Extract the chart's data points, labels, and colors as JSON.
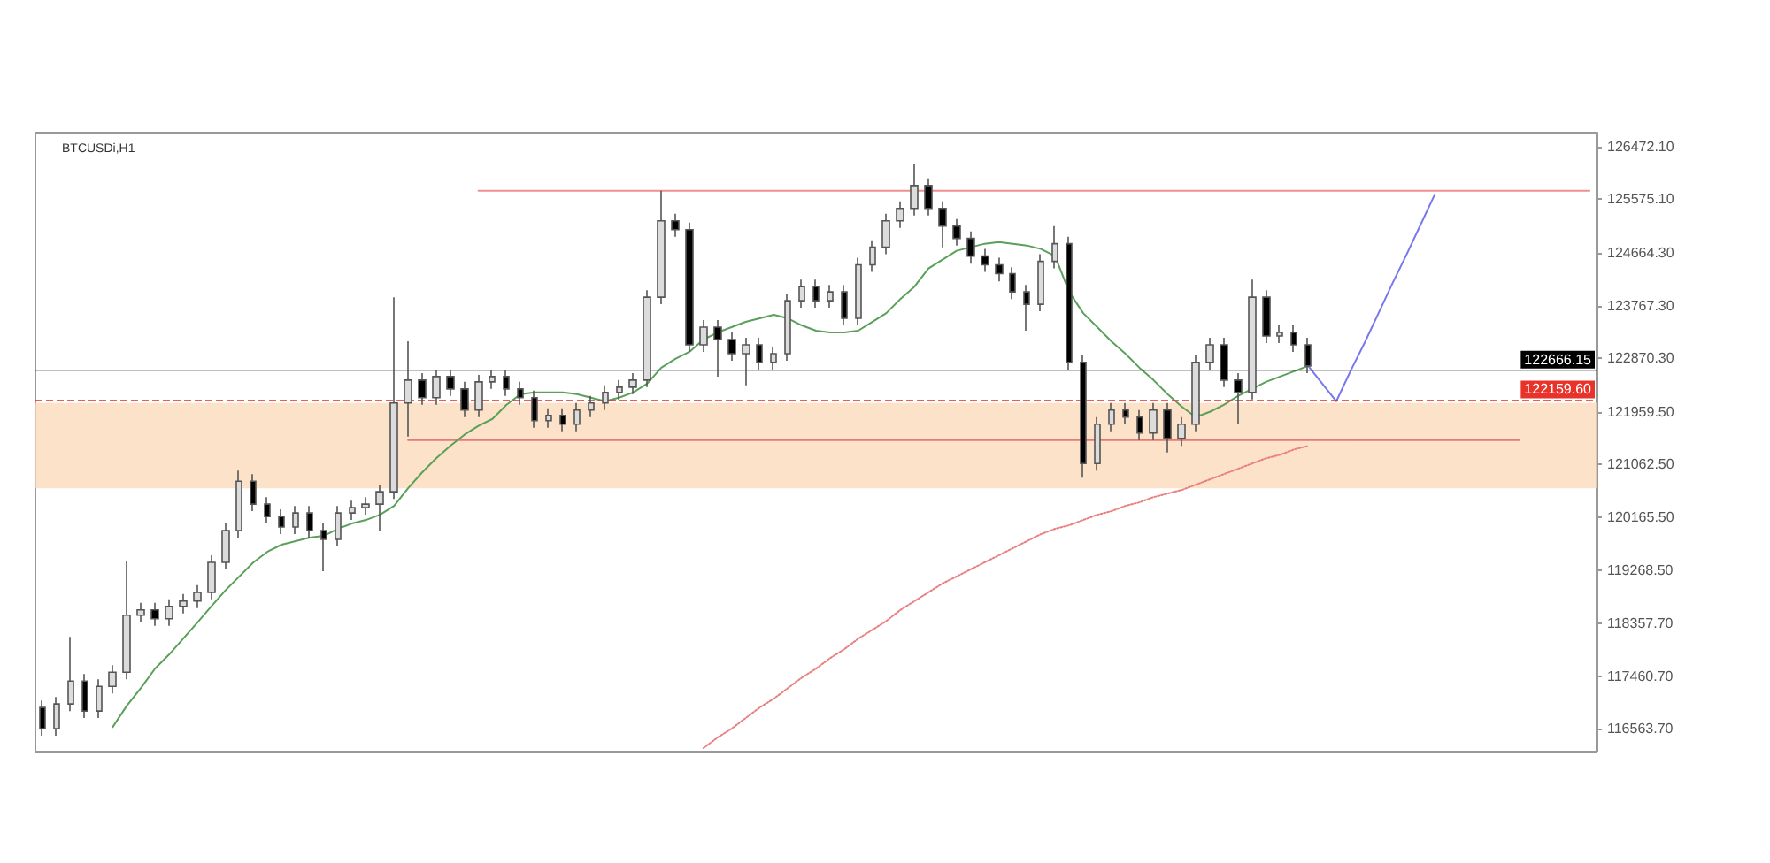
{
  "chart_data": {
    "type": "candlestick",
    "title": "BTCUSDi,H1",
    "categories": [
      null,
      null,
      null,
      null,
      null,
      null,
      null,
      null,
      null,
      null,
      null,
      null,
      null,
      null,
      null,
      null,
      null,
      null,
      null,
      null,
      null,
      null,
      null,
      null,
      null,
      null,
      null,
      null,
      null,
      null,
      null,
      null,
      null,
      null,
      null,
      null,
      null,
      null,
      null,
      null,
      null,
      null,
      null,
      null,
      null,
      null,
      null,
      null,
      null,
      null,
      null,
      null,
      null,
      null,
      null,
      null,
      null,
      null,
      null,
      null,
      null,
      null,
      null,
      null,
      null,
      null,
      null,
      null,
      null,
      null,
      null,
      null,
      null,
      null,
      null,
      null,
      null,
      null,
      null,
      null,
      null,
      null,
      null,
      null,
      null,
      null,
      null,
      null,
      null,
      null,
      null,
      null,
      null,
      null,
      null,
      null,
      null,
      null,
      null,
      null,
      null,
      null,
      null,
      null,
      null,
      null,
      null,
      null,
      null,
      null,
      null
    ],
    "ylim": [
      116180,
      126710
    ],
    "yticks": [
      {
        "value": 116563.7,
        "label": "116563.70"
      },
      {
        "value": 117460.7,
        "label": "117460.70"
      },
      {
        "value": 118357.7,
        "label": "118357.70"
      },
      {
        "value": 119268.5,
        "label": "119268.50"
      },
      {
        "value": 120165.5,
        "label": "120165.50"
      },
      {
        "value": 121062.5,
        "label": "121062.50"
      },
      {
        "value": 121959.5,
        "label": "121959.50"
      },
      {
        "value": 122870.3,
        "label": "122870.30"
      },
      {
        "value": 123767.3,
        "label": "123767.30"
      },
      {
        "value": 124664.3,
        "label": "124664.30"
      },
      {
        "value": 125575.1,
        "label": "125575.10"
      },
      {
        "value": 126472.1,
        "label": "126472.10"
      }
    ],
    "tick_labels": "y",
    "grid": false,
    "ref_lines": [
      {
        "axis": "y",
        "value": 122666.15,
        "label": "122666.15",
        "color": "#000000",
        "line_style": "solid"
      },
      {
        "axis": "y",
        "value": 122159.6,
        "label": "122159.60",
        "color": "#e8332a",
        "line_style": "dashed"
      }
    ],
    "bands": [
      {
        "axis": "y",
        "from": 120660,
        "to": 122110,
        "color": "#fbd6b0"
      }
    ],
    "series": [
      {
        "type": "line",
        "color": "#ef8f8f",
        "line_style": "solid",
        "marker": "none",
        "values": [
          null,
          null,
          null,
          null,
          null,
          null,
          null,
          null,
          null,
          null,
          null,
          null,
          null,
          null,
          null,
          null,
          null,
          null,
          null,
          null,
          null,
          null,
          null,
          null,
          null,
          null,
          null,
          null,
          null,
          null,
          null,
          125720,
          125720,
          125720,
          125720,
          125720,
          125720,
          125720,
          125720,
          125720,
          125720,
          125720,
          125720,
          125720,
          125720,
          125720,
          125720,
          125720,
          125720,
          125720,
          125720,
          125720,
          125720,
          125720,
          125720,
          125720,
          125720,
          125720,
          125720,
          125720,
          125720,
          125720,
          125720,
          125720,
          125720,
          125720,
          125720,
          125720,
          125720,
          125720,
          125720,
          125720,
          125720,
          125720,
          125720,
          125720,
          125720,
          125720,
          125720,
          125720,
          125720,
          125720,
          125720,
          125720,
          125720,
          125720,
          125720,
          125720,
          125720,
          125720,
          125720,
          125720,
          125720,
          125720,
          125720,
          125720,
          125720,
          125720,
          125720,
          125720,
          125720,
          125720,
          125720,
          125720,
          125720,
          125720,
          125720,
          125720,
          125720,
          125720,
          125720
        ]
      },
      {
        "type": "line",
        "color": "#e47a7a",
        "line_style": "solid",
        "marker": "none",
        "values": [
          null,
          null,
          null,
          null,
          null,
          null,
          null,
          null,
          null,
          null,
          null,
          null,
          null,
          null,
          null,
          null,
          null,
          null,
          null,
          null,
          null,
          null,
          null,
          null,
          null,
          null,
          121480,
          121480,
          121480,
          121480,
          121480,
          121480,
          121480,
          121480,
          121480,
          121480,
          121480,
          121480,
          121480,
          121480,
          121480,
          121480,
          121480,
          121480,
          121480,
          121480,
          121480,
          121480,
          121480,
          121480,
          121480,
          121480,
          121480,
          121480,
          121480,
          121480,
          121480,
          121480,
          121480,
          121480,
          121480,
          121480,
          121480,
          121480,
          121480,
          121480,
          121480,
          121480,
          121480,
          121480,
          121480,
          121480,
          121480,
          121480,
          121480,
          121480,
          121480,
          121480,
          121480,
          121480,
          121480,
          121480,
          121480,
          121480,
          121480,
          121480,
          121480,
          121480,
          121480,
          121480,
          121480,
          121480,
          121480,
          121480,
          121480,
          121480,
          121480,
          121480,
          121480,
          121480,
          121480,
          121480,
          121480,
          121480,
          121480,
          121480,
          null,
          null,
          null,
          null,
          null
        ]
      },
      {
        "type": "line",
        "color": "#e88080",
        "line_style": "dotted",
        "marker": "none",
        "values": [
          null,
          null,
          null,
          null,
          null,
          null,
          null,
          null,
          null,
          null,
          null,
          null,
          null,
          null,
          null,
          null,
          null,
          null,
          null,
          null,
          null,
          null,
          null,
          null,
          null,
          null,
          null,
          null,
          null,
          null,
          null,
          null,
          null,
          null,
          null,
          null,
          null,
          null,
          null,
          null,
          null,
          null,
          null,
          null,
          null,
          null,
          null,
          116240,
          116420,
          116570,
          116750,
          116930,
          117080,
          117260,
          117440,
          117590,
          117770,
          117920,
          118100,
          118250,
          118400,
          118590,
          118740,
          118890,
          119040,
          119160,
          119280,
          119400,
          119520,
          119640,
          119760,
          119880,
          119970,
          120030,
          120120,
          120210,
          120270,
          120360,
          120420,
          120510,
          120570,
          120630,
          120720,
          120810,
          120900,
          120990,
          121080,
          121170,
          121230,
          121320,
          121380,
          null,
          null,
          null,
          null,
          null,
          null,
          null,
          null,
          null,
          null,
          null,
          null,
          null,
          null,
          null,
          null,
          null,
          null,
          null,
          null
        ]
      },
      {
        "type": "line",
        "color": "#5aa05a",
        "line_style": "solid",
        "marker": "none",
        "values": [
          null,
          null,
          null,
          null,
          null,
          116600,
          116960,
          117260,
          117590,
          117830,
          118100,
          118370,
          118650,
          118920,
          119160,
          119400,
          119580,
          119700,
          119760,
          119820,
          119850,
          119970,
          120060,
          120120,
          120210,
          120360,
          120660,
          120930,
          121170,
          121380,
          121570,
          121720,
          121840,
          122080,
          122260,
          122290,
          122290,
          122290,
          122260,
          122200,
          122140,
          122200,
          122290,
          122440,
          122710,
          122860,
          122980,
          123190,
          123310,
          123400,
          123490,
          123550,
          123610,
          123550,
          123430,
          123340,
          123310,
          123310,
          123340,
          123490,
          123640,
          123880,
          124090,
          124400,
          124550,
          124700,
          124760,
          124820,
          124850,
          124820,
          124790,
          124730,
          124610,
          124000,
          123640,
          123400,
          123160,
          122950,
          122710,
          122500,
          122260,
          122050,
          121870,
          121960,
          122080,
          122230,
          122350,
          122470,
          122560,
          122650,
          122740,
          null,
          null,
          null,
          null,
          null,
          null,
          null,
          null,
          null,
          null,
          null,
          null,
          null,
          null,
          null,
          null,
          null,
          null,
          null,
          null
        ]
      },
      {
        "type": "line",
        "color": "#7777ee",
        "line_style": "solid",
        "marker": "none",
        "values": [
          null,
          null,
          null,
          null,
          null,
          null,
          null,
          null,
          null,
          null,
          null,
          null,
          null,
          null,
          null,
          null,
          null,
          null,
          null,
          null,
          null,
          null,
          null,
          null,
          null,
          null,
          null,
          null,
          null,
          null,
          null,
          null,
          null,
          null,
          null,
          null,
          null,
          null,
          null,
          null,
          null,
          null,
          null,
          null,
          null,
          null,
          null,
          null,
          null,
          null,
          null,
          null,
          null,
          null,
          null,
          null,
          null,
          null,
          null,
          null,
          null,
          null,
          null,
          null,
          null,
          null,
          null,
          null,
          null,
          null,
          null,
          null,
          null,
          null,
          null,
          null,
          null,
          null,
          null,
          null,
          null,
          null,
          null,
          null,
          null,
          null,
          null,
          null,
          null,
          null,
          122740,
          122440,
          122140,
          122650,
          123130,
          123640,
          124150,
          124640,
          125150,
          125660,
          null,
          null,
          null,
          null,
          null,
          null,
          null,
          null,
          null,
          null,
          null
        ]
      },
      {
        "colors": [
          "#000000",
          "#dcdcdc",
          "#dcdcdc",
          "#000000",
          "#dcdcdc",
          "#dcdcdc",
          "#dcdcdc",
          "#dcdcdc",
          "#000000",
          "#dcdcdc",
          "#dcdcdc",
          "#dcdcdc",
          "#dcdcdc",
          "#dcdcdc",
          "#dcdcdc",
          "#000000",
          "#000000",
          "#000000",
          "#dcdcdc",
          "#000000",
          "#000000",
          "#dcdcdc",
          "#dcdcdc",
          "#dcdcdc",
          "#dcdcdc",
          "#dcdcdc",
          "#dcdcdc",
          "#000000",
          "#dcdcdc",
          "#000000",
          "#000000",
          "#dcdcdc",
          "#dcdcdc",
          "#000000",
          "#000000",
          "#000000",
          "#dcdcdc",
          "#000000",
          "#dcdcdc",
          "#dcdcdc",
          "#dcdcdc",
          "#dcdcdc",
          "#dcdcdc",
          "#dcdcdc",
          "#dcdcdc",
          "#000000",
          "#000000",
          "#dcdcdc",
          "#000000",
          "#000000",
          "#dcdcdc",
          "#000000",
          "#dcdcdc",
          "#dcdcdc",
          "#dcdcdc",
          "#000000",
          "#dcdcdc",
          "#000000",
          "#dcdcdc",
          "#dcdcdc",
          "#dcdcdc",
          "#dcdcdc",
          "#dcdcdc",
          "#000000",
          "#000000",
          "#000000",
          "#000000",
          "#000000",
          "#000000",
          "#000000",
          "#000000",
          "#dcdcdc",
          "#dcdcdc",
          "#000000",
          "#000000",
          "#dcdcdc",
          "#dcdcdc",
          "#000000",
          "#000000",
          "#dcdcdc",
          "#000000",
          "#dcdcdc",
          "#dcdcdc",
          "#dcdcdc",
          "#000000",
          "#000000",
          "#dcdcdc",
          "#000000",
          "#dcdcdc",
          "#000000",
          "#000000",
          null,
          null,
          null,
          null,
          null,
          null,
          null,
          null,
          null,
          null,
          null,
          null,
          null,
          null,
          null,
          null,
          null,
          null,
          null,
          null
        ],
        "ohlc": [
          [
            116930,
            117050,
            116450,
            116570
          ],
          [
            116570,
            117110,
            116450,
            116990
          ],
          [
            116990,
            118130,
            116870,
            117380
          ],
          [
            117380,
            117500,
            116750,
            116870
          ],
          [
            116870,
            117410,
            116750,
            117290
          ],
          [
            117290,
            117650,
            117170,
            117530
          ],
          [
            117530,
            119430,
            117410,
            118500
          ],
          [
            118500,
            118710,
            118380,
            118590
          ],
          [
            118590,
            118710,
            118320,
            118440
          ],
          [
            118440,
            118770,
            118320,
            118650
          ],
          [
            118650,
            118860,
            118530,
            118740
          ],
          [
            118740,
            119010,
            118620,
            118890
          ],
          [
            118890,
            119520,
            118770,
            119400
          ],
          [
            119400,
            120060,
            119280,
            119940
          ],
          [
            119940,
            120960,
            119820,
            120780
          ],
          [
            120780,
            120900,
            120270,
            120390
          ],
          [
            120390,
            120510,
            120060,
            120180
          ],
          [
            120180,
            120300,
            119880,
            120000
          ],
          [
            120000,
            120360,
            119880,
            120240
          ],
          [
            120240,
            120360,
            119820,
            119940
          ],
          [
            119940,
            120060,
            119250,
            119790
          ],
          [
            119790,
            120360,
            119670,
            120240
          ],
          [
            120240,
            120450,
            120120,
            120330
          ],
          [
            120330,
            120510,
            120210,
            120390
          ],
          [
            120390,
            120720,
            119940,
            120600
          ],
          [
            120600,
            123910,
            120480,
            122110
          ],
          [
            122110,
            123160,
            121540,
            122500
          ],
          [
            122500,
            122620,
            122080,
            122200
          ],
          [
            122200,
            122680,
            122080,
            122560
          ],
          [
            122560,
            122680,
            122230,
            122350
          ],
          [
            122350,
            122470,
            121870,
            121990
          ],
          [
            121990,
            122590,
            121870,
            122470
          ],
          [
            122470,
            122680,
            122350,
            122560
          ],
          [
            122560,
            122680,
            122230,
            122350
          ],
          [
            122350,
            122470,
            122080,
            122200
          ],
          [
            122200,
            122320,
            121690,
            121810
          ],
          [
            121810,
            122020,
            121690,
            121900
          ],
          [
            121900,
            122020,
            121630,
            121750
          ],
          [
            121750,
            122110,
            121630,
            121990
          ],
          [
            121990,
            122230,
            121870,
            122110
          ],
          [
            122110,
            122410,
            121990,
            122290
          ],
          [
            122290,
            122500,
            122170,
            122380
          ],
          [
            122380,
            122620,
            122260,
            122500
          ],
          [
            122500,
            124030,
            122380,
            123910
          ],
          [
            123910,
            125720,
            123790,
            125210
          ],
          [
            125210,
            125330,
            124940,
            125060
          ],
          [
            125060,
            125180,
            122980,
            123100
          ],
          [
            123100,
            123520,
            122980,
            123400
          ],
          [
            123400,
            123520,
            122560,
            123190
          ],
          [
            123190,
            123310,
            122830,
            122950
          ],
          [
            122950,
            123220,
            122410,
            123100
          ],
          [
            123100,
            123220,
            122680,
            122800
          ],
          [
            122800,
            123070,
            122680,
            122950
          ],
          [
            122950,
            123970,
            122830,
            123850
          ],
          [
            123850,
            124210,
            123730,
            124090
          ],
          [
            124090,
            124210,
            123730,
            123850
          ],
          [
            123850,
            124120,
            123730,
            124000
          ],
          [
            124000,
            124120,
            123430,
            123550
          ],
          [
            123550,
            124580,
            123430,
            124460
          ],
          [
            124460,
            124880,
            124340,
            124760
          ],
          [
            124760,
            125330,
            124640,
            125210
          ],
          [
            125210,
            125540,
            125090,
            125420
          ],
          [
            125420,
            126170,
            125300,
            125810
          ],
          [
            125810,
            125930,
            125300,
            125420
          ],
          [
            125420,
            125540,
            124760,
            125120
          ],
          [
            125120,
            125240,
            124790,
            124910
          ],
          [
            124910,
            125030,
            124480,
            124610
          ],
          [
            124610,
            124730,
            124340,
            124460
          ],
          [
            124460,
            124580,
            124180,
            124310
          ],
          [
            124310,
            124420,
            123880,
            124000
          ],
          [
            124000,
            124120,
            123340,
            123790
          ],
          [
            123790,
            124640,
            123670,
            124520
          ],
          [
            124520,
            125120,
            124400,
            124820
          ],
          [
            124820,
            124940,
            122680,
            122800
          ],
          [
            122800,
            122920,
            120840,
            121080
          ],
          [
            121080,
            121870,
            120960,
            121750
          ],
          [
            121750,
            122110,
            121630,
            121990
          ],
          [
            121990,
            122110,
            121750,
            121870
          ],
          [
            121870,
            121990,
            121480,
            121600
          ],
          [
            121600,
            122110,
            121480,
            121990
          ],
          [
            121990,
            122110,
            121270,
            121510
          ],
          [
            121510,
            121870,
            121380,
            121750
          ],
          [
            121750,
            122920,
            121630,
            122800
          ],
          [
            122800,
            123220,
            122680,
            123100
          ],
          [
            123100,
            123220,
            122380,
            122500
          ],
          [
            122500,
            122620,
            121750,
            122290
          ],
          [
            122290,
            124210,
            122170,
            123910
          ],
          [
            123910,
            124030,
            123130,
            123250
          ],
          [
            123250,
            123430,
            123130,
            123310
          ],
          [
            123310,
            123430,
            122980,
            123100
          ],
          [
            123100,
            123220,
            122620,
            122740
          ],
          null,
          null,
          null,
          null,
          null,
          null,
          null,
          null,
          null,
          null,
          null,
          null,
          null,
          null,
          null,
          null,
          null,
          null,
          null,
          null
        ]
      }
    ]
  }
}
